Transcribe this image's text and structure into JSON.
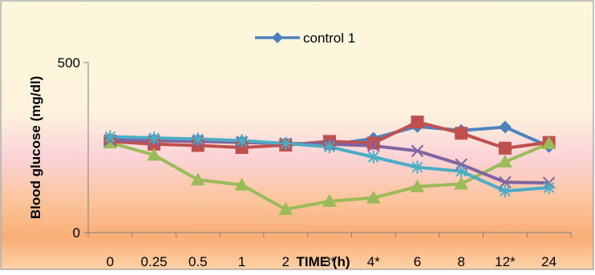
{
  "chart_data": {
    "type": "line",
    "title": "",
    "xlabel": "TIME (h)",
    "ylabel": "Blood glucose (mg/dl)",
    "ylim": [
      0,
      500
    ],
    "yticks": [
      0,
      500
    ],
    "categories": [
      "0",
      "0.25",
      "0.5",
      "1",
      "2",
      "3*",
      "4*",
      "6",
      "8",
      "12*",
      "24"
    ],
    "grid": false,
    "legend_position": "top-center",
    "background": "vertical gradient cream to pink to orange",
    "series": [
      {
        "name": "control 1",
        "color": "#4f81bd",
        "marker": "diamond",
        "values": [
          275,
          273,
          272,
          268,
          262,
          257,
          277,
          312,
          300,
          310,
          253
        ]
      },
      {
        "name": "",
        "color": "#c0504d",
        "marker": "square",
        "values": [
          268,
          260,
          256,
          250,
          257,
          268,
          263,
          325,
          292,
          248,
          265
        ]
      },
      {
        "name": "",
        "color": "#9bbb59",
        "marker": "triangle",
        "values": [
          264,
          228,
          155,
          140,
          68,
          92,
          102,
          135,
          143,
          208,
          262
        ]
      },
      {
        "name": "",
        "color": "#8064a2",
        "marker": "x",
        "values": [
          272,
          270,
          268,
          265,
          262,
          260,
          255,
          240,
          200,
          148,
          146
        ]
      },
      {
        "name": "",
        "color": "#4bacc6",
        "marker": "star",
        "values": [
          282,
          278,
          275,
          270,
          262,
          252,
          222,
          192,
          180,
          122,
          132
        ]
      }
    ]
  }
}
